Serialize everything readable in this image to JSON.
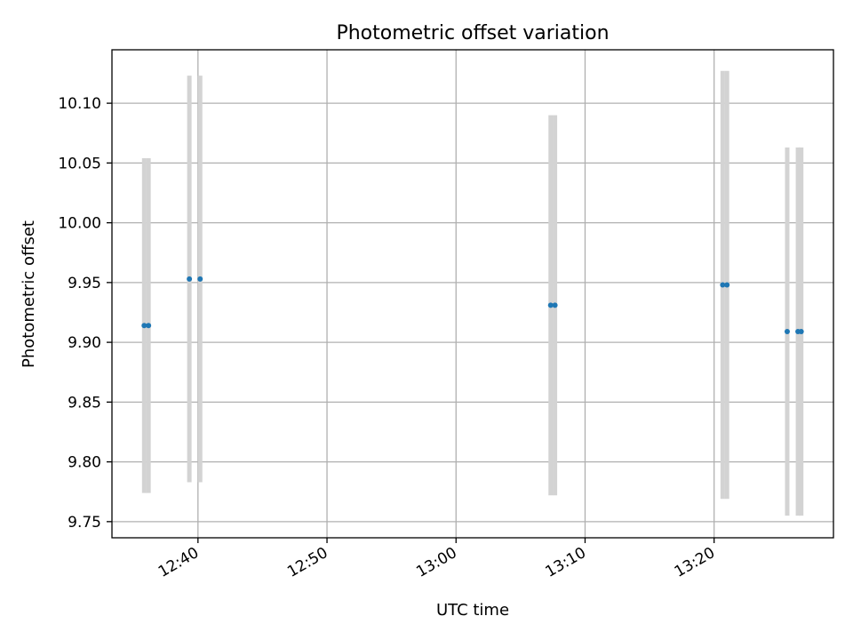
{
  "chart_data": {
    "type": "scatter",
    "title": "Photometric offset variation",
    "xlabel": "UTC time",
    "ylabel": "Photometric offset",
    "x_axis_type": "time",
    "xlim": [
      "12:33:20",
      "13:29:15"
    ],
    "ylim": [
      9.7365,
      10.1447
    ],
    "x_ticks": [
      "12:40",
      "12:50",
      "13:00",
      "13:10",
      "13:20"
    ],
    "y_ticks": [
      "9.75",
      "9.80",
      "9.85",
      "9.90",
      "9.95",
      "10.00",
      "10.05",
      "10.10"
    ],
    "grid": true,
    "series": [
      {
        "marker_color": "#1f77b4",
        "errorbar_color": "#d3d3d3",
        "points": [
          {
            "x": "12:35:50",
            "y": 9.914,
            "err": 0.14
          },
          {
            "x": "12:36:10",
            "y": 9.914,
            "err": 0.14
          },
          {
            "x": "12:39:20",
            "y": 9.953,
            "err": 0.17
          },
          {
            "x": "12:40:10",
            "y": 9.953,
            "err": 0.17
          },
          {
            "x": "13:07:20",
            "y": 9.931,
            "err": 0.159
          },
          {
            "x": "13:07:40",
            "y": 9.931,
            "err": 0.159
          },
          {
            "x": "13:20:40",
            "y": 9.948,
            "err": 0.179
          },
          {
            "x": "13:21:00",
            "y": 9.948,
            "err": 0.179
          },
          {
            "x": "13:25:40",
            "y": 9.909,
            "err": 0.154
          },
          {
            "x": "13:26:30",
            "y": 9.909,
            "err": 0.154
          },
          {
            "x": "13:26:45",
            "y": 9.909,
            "err": 0.154
          }
        ]
      }
    ]
  }
}
